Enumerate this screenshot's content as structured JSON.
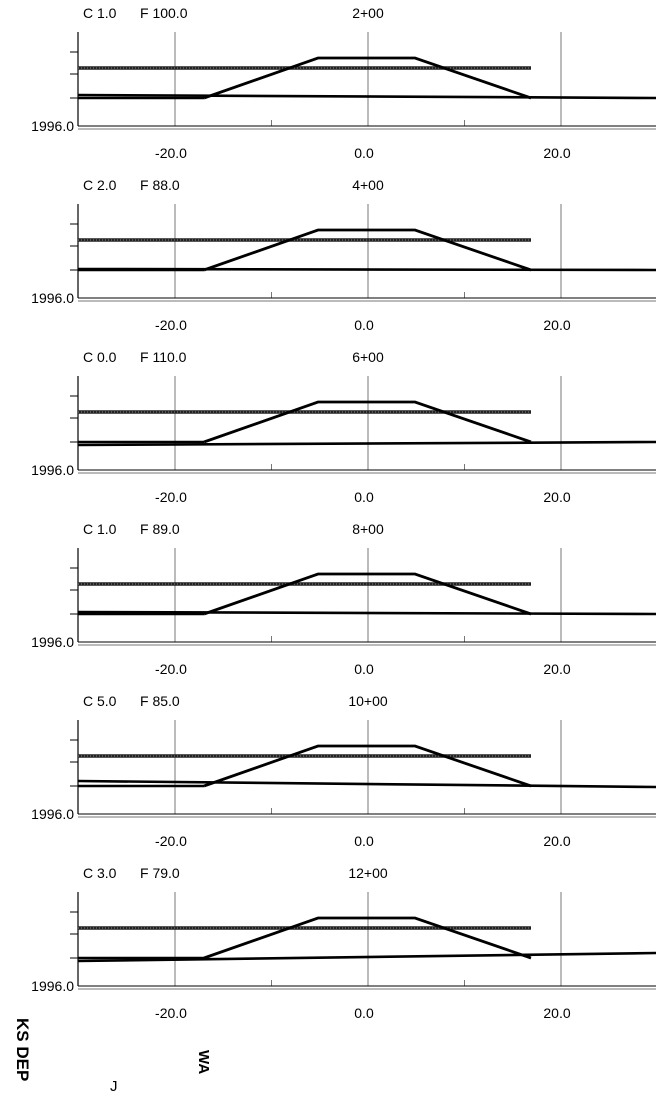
{
  "sections": [
    {
      "cut_label": "C 1.0",
      "fill_label": "F 100.0",
      "station": "2+00",
      "elevation_label": "1996.0",
      "x_ticks": [
        "-20.0",
        "0.0",
        "20.0"
      ],
      "ground_left": 97.0,
      "ground_right": 102.0
    },
    {
      "cut_label": "C 2.0",
      "fill_label": "F 88.0",
      "station": "4+00",
      "elevation_label": "1996.0",
      "x_ticks": [
        "-20.0",
        "0.0",
        "20.0"
      ],
      "ground_left": 99.0,
      "ground_right": 102.0
    },
    {
      "cut_label": "C 0.0",
      "fill_label": "F 110.0",
      "station": "6+00",
      "elevation_label": "1996.0",
      "x_ticks": [
        "-20.0",
        "0.0",
        "20.0"
      ],
      "ground_left": 103.0,
      "ground_right": 102.0
    },
    {
      "cut_label": "C 1.0",
      "fill_label": "F 89.0",
      "station": "8+00",
      "elevation_label": "1996.0",
      "x_ticks": [
        "-20.0",
        "0.0",
        "20.0"
      ],
      "ground_left": 98.0,
      "ground_right": 102.0
    },
    {
      "cut_label": "C 5.0",
      "fill_label": "F 85.0",
      "station": "10+00",
      "elevation_label": "1996.0",
      "x_ticks": [
        "-20.0",
        "0.0",
        "20.0"
      ],
      "ground_left": 95.0,
      "ground_right": 103.0
    },
    {
      "cut_label": "C 3.0",
      "fill_label": "F 79.0",
      "station": "12+00",
      "elevation_label": "1996.0",
      "x_ticks": [
        "-20.0",
        "0.0",
        "20.0"
      ],
      "ground_left": 103.0,
      "ground_right": 97.0
    }
  ],
  "margin_text": {
    "left_stamp": "KS DEP",
    "rotated_a": "WA",
    "rotated_b": "J"
  }
}
